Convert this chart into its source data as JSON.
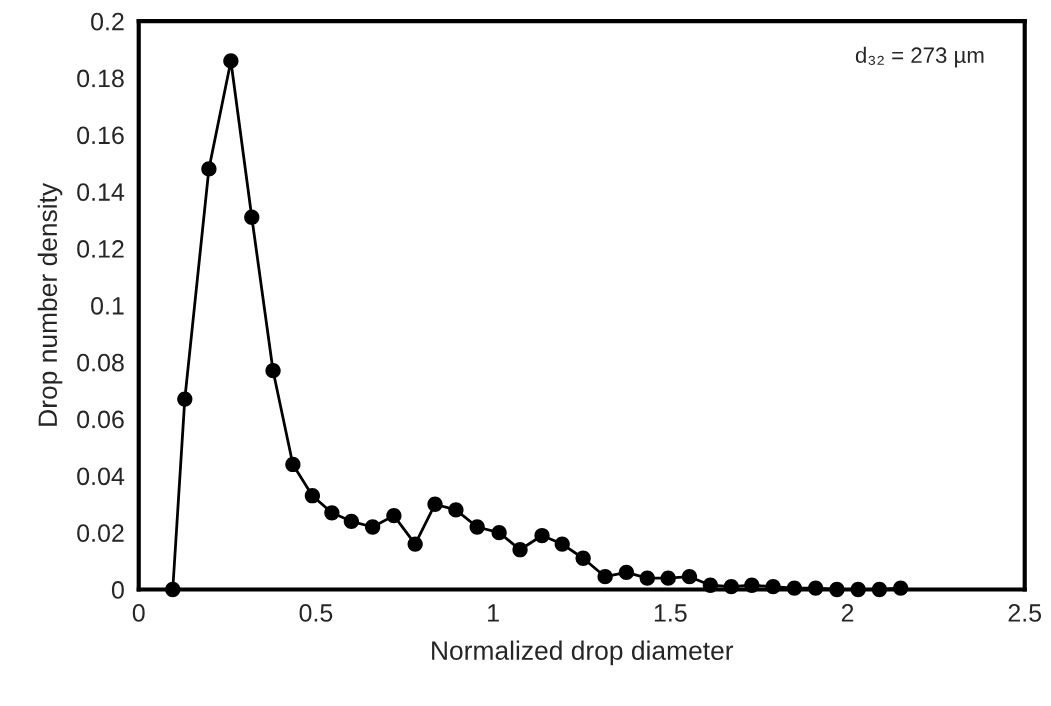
{
  "chart_data": {
    "type": "line",
    "xlabel": "Normalized drop diameter",
    "ylabel": "Drop number density",
    "annotations": [
      "d₃₂ = 273 µm"
    ],
    "xlim": [
      0,
      2.5
    ],
    "xticks": [
      0,
      0.5,
      1,
      1.5,
      2,
      2.5
    ],
    "ylim": [
      0,
      0.2
    ],
    "yticks": [
      0,
      0.02,
      0.04,
      0.06,
      0.08,
      0.1,
      0.12,
      0.14,
      0.16,
      0.18,
      0.2
    ],
    "grid": false,
    "marker": "circle",
    "line_style": "solid",
    "series": [
      {
        "color": "#000000",
        "x": [
          0.096,
          0.13,
          0.198,
          0.26,
          0.319,
          0.379,
          0.435,
          0.49,
          0.545,
          0.6,
          0.66,
          0.72,
          0.78,
          0.836,
          0.895,
          0.955,
          1.017,
          1.076,
          1.138,
          1.195,
          1.254,
          1.316,
          1.376,
          1.435,
          1.494,
          1.554,
          1.613,
          1.672,
          1.73,
          1.79,
          1.85,
          1.91,
          1.97,
          2.03,
          2.09,
          2.15
        ],
        "values": [
          0,
          0.067,
          0.148,
          0.186,
          0.131,
          0.077,
          0.044,
          0.033,
          0.027,
          0.024,
          0.022,
          0.026,
          0.016,
          0.03,
          0.028,
          0.022,
          0.02,
          0.014,
          0.019,
          0.016,
          0.011,
          0.0045,
          0.006,
          0.004,
          0.004,
          0.0045,
          0.0015,
          0.001,
          0.0015,
          0.001,
          0.0005,
          0.0005,
          0,
          0,
          0,
          0.0005
        ]
      }
    ]
  }
}
